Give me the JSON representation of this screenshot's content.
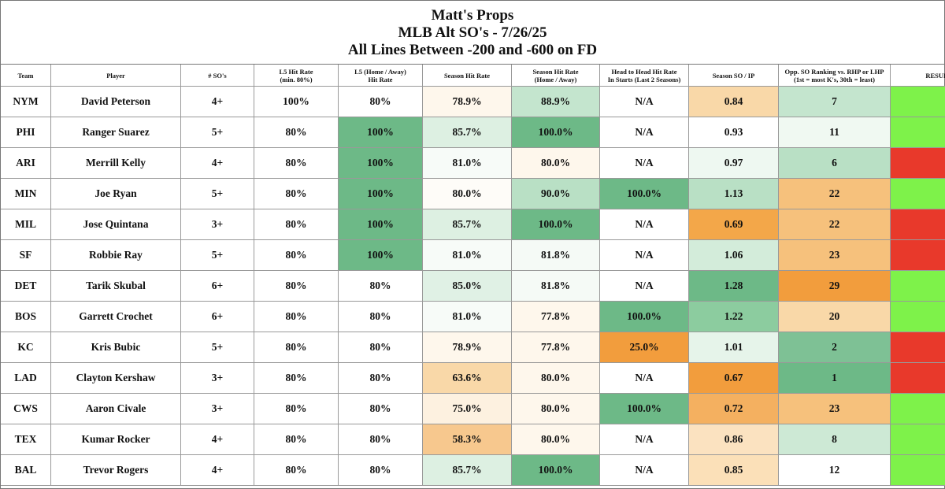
{
  "title": {
    "line1": "Matt's Props",
    "line2": "MLB Alt SO's - 7/26/25",
    "line3": "All Lines Between -200 and -600 on FD"
  },
  "columns": {
    "team": "Team",
    "player": "Player",
    "so": "# SO's",
    "l5_line1": "L5 Hit Rate",
    "l5_line2": "(min. 80%)",
    "l5ha_line1": "L5 (Home / Away)",
    "l5ha_line2": "Hit Rate",
    "season_hit_rate": "Season Hit Rate",
    "shrha_line1": "Season Hit Rate",
    "shrha_line2": "(Home / Away)",
    "h2h_line1": "Head to Head Hit Rate",
    "h2h_line2": "In Starts (Last 2 Seasons)",
    "so_ip": "Season SO / IP",
    "opp_line1": "Opp. SO Ranking vs. RHP or LHP",
    "opp_line2": "(1st = most K's, 30th = least)",
    "result": "RESULT"
  },
  "colors": {
    "green_dark": "#6db987",
    "green_mid": "#8ccc9f",
    "green_light": "#b9e0c5",
    "green_pale": "#ddf0e2",
    "green_faint": "#f0f9f2",
    "orange_dark": "#f29d3d",
    "orange_mid": "#f6c17c",
    "orange_light": "#f9d8a8",
    "orange_pale": "#fce8cc",
    "orange_faint": "#fef7ec",
    "result_win": "#7ef24a",
    "result_loss": "#e8392b"
  },
  "rows": [
    {
      "team": "NYM",
      "player": "David Peterson",
      "so": "4+",
      "l5": "100%",
      "l5ha": "80%",
      "shr": "78.9%",
      "shrha": "88.9%",
      "h2h": "N/A",
      "soip": "0.84",
      "opp": "7",
      "result": "win",
      "bg": {
        "shr": "#fef7ec",
        "shrha": "#c4e5ce",
        "soip": "#f9d8a8",
        "opp": "#c4e5ce"
      }
    },
    {
      "team": "PHI",
      "player": "Ranger Suarez",
      "so": "5+",
      "l5": "80%",
      "l5ha": "100%",
      "shr": "85.7%",
      "shrha": "100.0%",
      "h2h": "N/A",
      "soip": "0.93",
      "opp": "11",
      "result": "win",
      "bg": {
        "l5ha": "#6db987",
        "shr": "#ddf0e2",
        "shrha": "#6db987",
        "opp": "#f0f9f2"
      }
    },
    {
      "team": "ARI",
      "player": "Merrill Kelly",
      "so": "4+",
      "l5": "80%",
      "l5ha": "100%",
      "shr": "81.0%",
      "shrha": "80.0%",
      "h2h": "N/A",
      "soip": "0.97",
      "opp": "6",
      "result": "loss",
      "bg": {
        "l5ha": "#6db987",
        "shr": "#f7fbf8",
        "shrha": "#fef7ec",
        "soip": "#eef8f1",
        "opp": "#b9e0c5"
      }
    },
    {
      "team": "MIN",
      "player": "Joe Ryan",
      "so": "5+",
      "l5": "80%",
      "l5ha": "100%",
      "shr": "80.0%",
      "shrha": "90.0%",
      "h2h": "100.0%",
      "soip": "1.13",
      "opp": "22",
      "result": "win",
      "bg": {
        "l5ha": "#6db987",
        "shr": "#fefcf8",
        "shrha": "#b9e0c5",
        "h2h": "#6db987",
        "soip": "#b9e0c5",
        "opp": "#f6c17c"
      }
    },
    {
      "team": "MIL",
      "player": "Jose Quintana",
      "so": "3+",
      "l5": "80%",
      "l5ha": "100%",
      "shr": "85.7%",
      "shrha": "100.0%",
      "h2h": "N/A",
      "soip": "0.69",
      "opp": "22",
      "result": "loss",
      "bg": {
        "l5ha": "#6db987",
        "shr": "#ddf0e2",
        "shrha": "#6db987",
        "soip": "#f3a749",
        "opp": "#f6c17c"
      }
    },
    {
      "team": "SF",
      "player": "Robbie Ray",
      "so": "5+",
      "l5": "80%",
      "l5ha": "100%",
      "shr": "81.0%",
      "shrha": "81.8%",
      "h2h": "N/A",
      "soip": "1.06",
      "opp": "23",
      "result": "loss",
      "bg": {
        "l5ha": "#6db987",
        "shr": "#f7fbf8",
        "shrha": "#f5faf6",
        "soip": "#d3ecda",
        "opp": "#f6c17c"
      }
    },
    {
      "team": "DET",
      "player": "Tarik Skubal",
      "so": "6+",
      "l5": "80%",
      "l5ha": "80%",
      "shr": "85.0%",
      "shrha": "81.8%",
      "h2h": "N/A",
      "soip": "1.28",
      "opp": "29",
      "result": "win",
      "bg": {
        "shr": "#e0f1e5",
        "shrha": "#f5faf6",
        "soip": "#6db987",
        "opp": "#f29d3d"
      }
    },
    {
      "team": "BOS",
      "player": "Garrett Crochet",
      "so": "6+",
      "l5": "80%",
      "l5ha": "80%",
      "shr": "81.0%",
      "shrha": "77.8%",
      "h2h": "100.0%",
      "soip": "1.22",
      "opp": "20",
      "result": "win",
      "bg": {
        "shr": "#f7fbf8",
        "shrha": "#fef7ec",
        "h2h": "#6db987",
        "soip": "#8ccc9f",
        "opp": "#f9d8a8"
      }
    },
    {
      "team": "KC",
      "player": "Kris Bubic",
      "so": "5+",
      "l5": "80%",
      "l5ha": "80%",
      "shr": "78.9%",
      "shrha": "77.8%",
      "h2h": "25.0%",
      "soip": "1.01",
      "opp": "2",
      "result": "loss",
      "bg": {
        "shr": "#fef7ec",
        "shrha": "#fef7ec",
        "h2h": "#f29d3d",
        "soip": "#e6f4ea",
        "opp": "#7ec195"
      }
    },
    {
      "team": "LAD",
      "player": "Clayton Kershaw",
      "so": "3+",
      "l5": "80%",
      "l5ha": "80%",
      "shr": "63.6%",
      "shrha": "80.0%",
      "h2h": "N/A",
      "soip": "0.67",
      "opp": "1",
      "result": "loss",
      "bg": {
        "shr": "#f9d8a8",
        "shrha": "#fef7ec",
        "soip": "#f29d3d",
        "opp": "#6db987"
      }
    },
    {
      "team": "CWS",
      "player": "Aaron Civale",
      "so": "3+",
      "l5": "80%",
      "l5ha": "80%",
      "shr": "75.0%",
      "shrha": "80.0%",
      "h2h": "100.0%",
      "soip": "0.72",
      "opp": "23",
      "result": "win",
      "bg": {
        "shr": "#fdf1e0",
        "shrha": "#fef7ec",
        "h2h": "#6db987",
        "soip": "#f4b060",
        "opp": "#f6c17c"
      }
    },
    {
      "team": "TEX",
      "player": "Kumar Rocker",
      "so": "4+",
      "l5": "80%",
      "l5ha": "80%",
      "shr": "58.3%",
      "shrha": "80.0%",
      "h2h": "N/A",
      "soip": "0.86",
      "opp": "8",
      "result": "win",
      "bg": {
        "shr": "#f7c88e",
        "shrha": "#fef7ec",
        "soip": "#fbe2c0",
        "opp": "#cde9d5"
      }
    },
    {
      "team": "BAL",
      "player": "Trevor Rogers",
      "so": "4+",
      "l5": "80%",
      "l5ha": "80%",
      "shr": "85.7%",
      "shrha": "100.0%",
      "h2h": "N/A",
      "soip": "0.85",
      "opp": "12",
      "result": "win",
      "bg": {
        "shr": "#ddf0e2",
        "shrha": "#6db987",
        "soip": "#fbe0b8"
      }
    }
  ]
}
